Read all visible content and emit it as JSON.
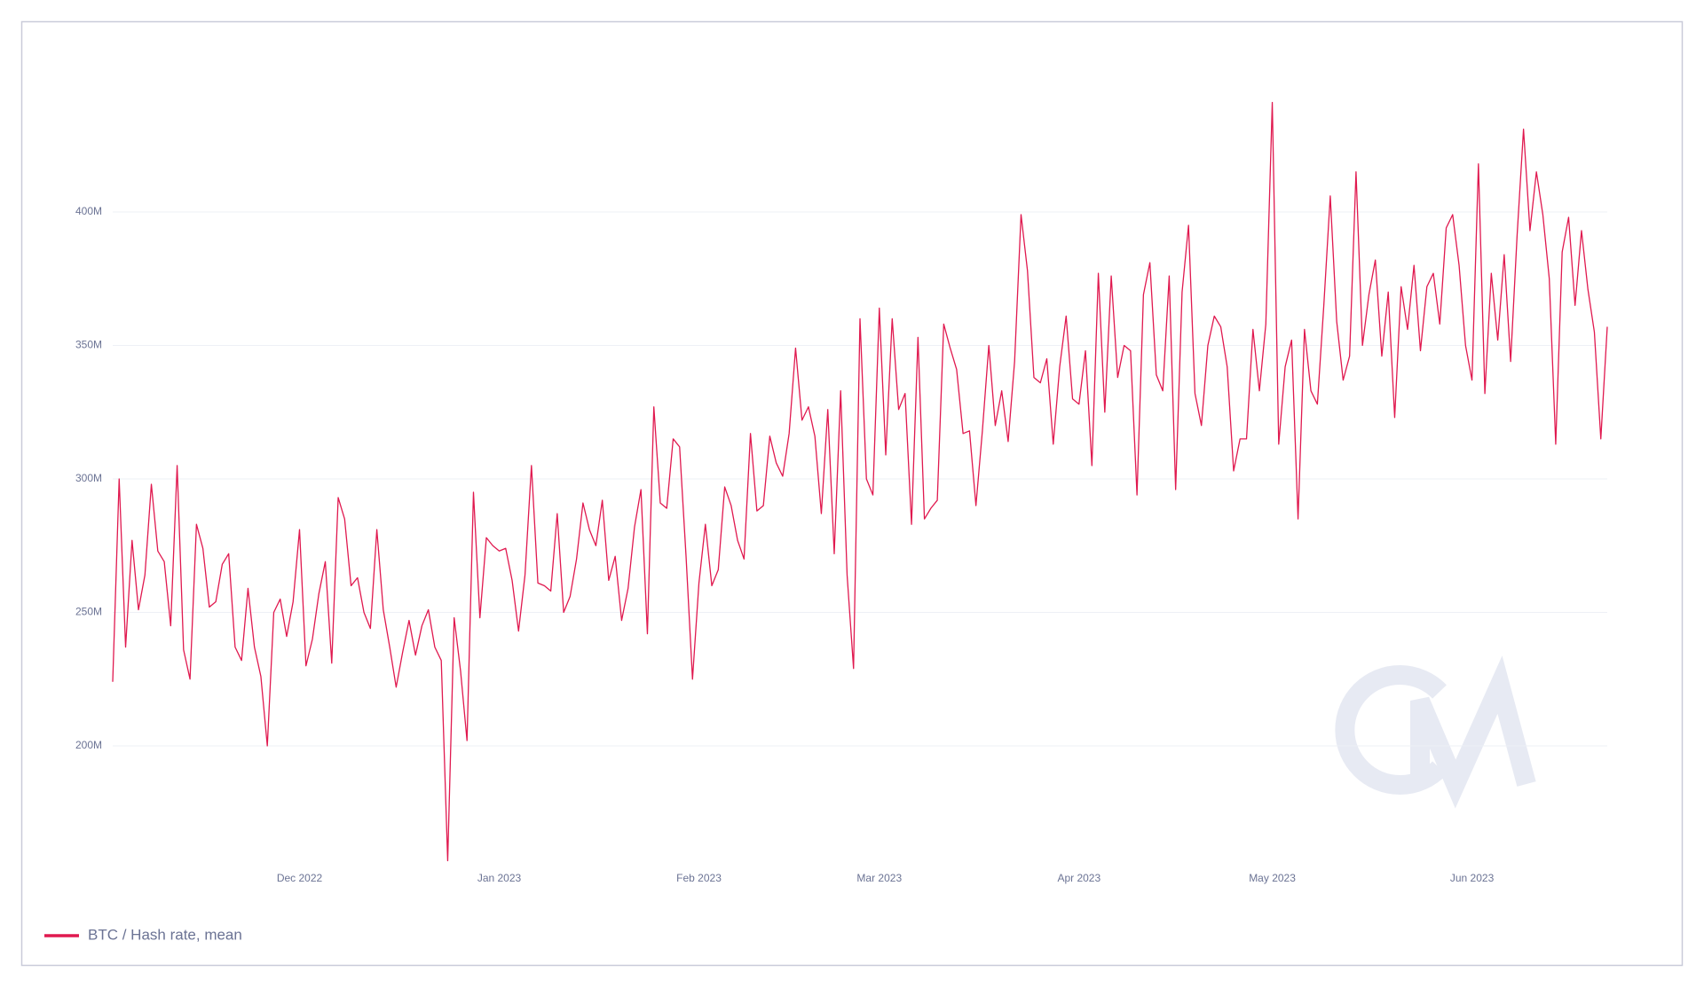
{
  "chart_data": {
    "type": "line",
    "series": [
      {
        "name": "BTC / Hash rate, mean",
        "color": "#e0194f",
        "values": [
          224,
          300,
          237,
          277,
          251,
          264,
          298,
          273,
          269,
          245,
          305,
          236,
          225,
          283,
          274,
          252,
          254,
          268,
          272,
          237,
          232,
          259,
          237,
          226,
          200,
          250,
          255,
          241,
          254,
          281,
          230,
          240,
          257,
          269,
          231,
          293,
          285,
          260,
          263,
          250,
          244,
          281,
          251,
          237,
          222,
          235,
          247,
          234,
          245,
          251,
          237,
          232,
          157,
          248,
          228,
          202,
          295,
          248,
          278,
          275,
          273,
          274,
          262,
          243,
          264,
          305,
          261,
          260,
          258,
          287,
          250,
          256,
          270,
          291,
          281,
          275,
          292,
          262,
          271,
          247,
          259,
          282,
          296,
          242,
          327,
          291,
          289,
          315,
          312,
          271,
          225,
          261,
          283,
          260,
          266,
          297,
          290,
          277,
          270,
          317,
          288,
          290,
          316,
          306,
          301,
          317,
          349,
          322,
          327,
          316,
          287,
          326,
          272,
          333,
          264,
          229,
          360,
          300,
          294,
          364,
          309,
          360,
          326,
          332,
          283,
          353,
          285,
          289,
          292,
          358,
          349,
          341,
          317,
          318,
          290,
          318,
          350,
          320,
          333,
          314,
          344,
          399,
          378,
          338,
          336,
          345,
          313,
          342,
          361,
          330,
          328,
          348,
          305,
          377,
          325,
          376,
          338,
          350,
          348,
          294,
          369,
          381,
          339,
          333,
          376,
          296,
          370,
          395,
          332,
          320,
          350,
          361,
          357,
          342,
          303,
          315,
          315,
          356,
          333,
          358,
          441,
          313,
          342,
          352,
          285,
          356,
          333,
          328,
          365,
          406,
          359,
          337,
          346,
          415,
          350,
          369,
          382,
          346,
          370,
          323,
          372,
          356,
          380,
          348,
          372,
          377,
          358,
          394,
          399,
          380,
          350,
          337,
          418,
          332,
          377,
          352,
          384,
          344,
          391,
          431,
          393,
          415,
          399,
          375,
          313,
          385,
          398,
          365,
          393,
          371,
          355,
          315,
          357
        ]
      }
    ],
    "xlim": [
      0,
      232
    ],
    "xticks": [
      {
        "value": 29,
        "label": "Dec 2022"
      },
      {
        "value": 60,
        "label": "Jan 2023"
      },
      {
        "value": 91,
        "label": "Feb 2023"
      },
      {
        "value": 119,
        "label": "Mar 2023"
      },
      {
        "value": 150,
        "label": "Apr 2023"
      },
      {
        "value": 180,
        "label": "May 2023"
      },
      {
        "value": 211,
        "label": "Jun 2023"
      }
    ],
    "ylim": [
      155,
      445
    ],
    "yticks": [
      {
        "value": 200,
        "label": "200M"
      },
      {
        "value": 250,
        "label": "250M"
      },
      {
        "value": 300,
        "label": "300M"
      },
      {
        "value": 350,
        "label": "350M"
      },
      {
        "value": 400,
        "label": "400M"
      }
    ],
    "grid": true,
    "legend": "bottom-left"
  }
}
